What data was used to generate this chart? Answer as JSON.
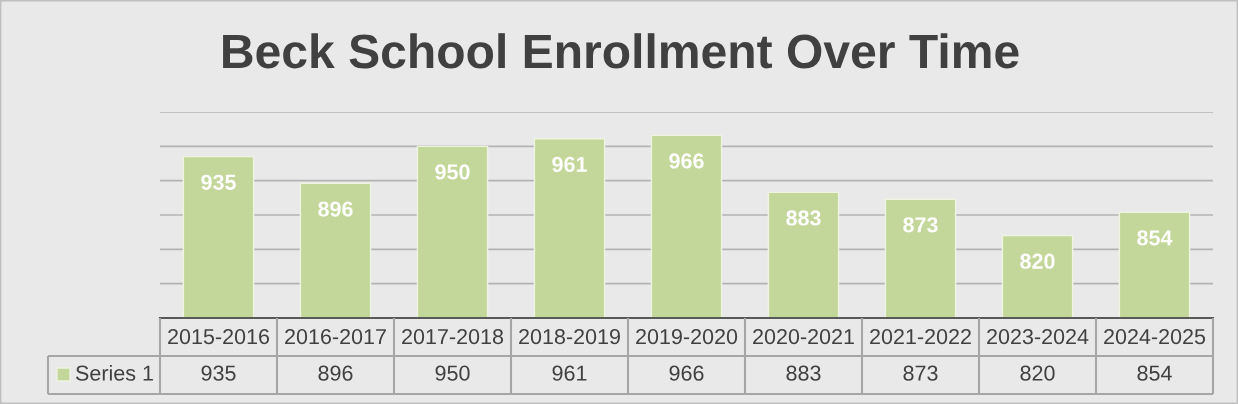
{
  "chart_data": {
    "type": "bar",
    "title": "Beck School Enrollment Over Time",
    "categories": [
      "2015-2016",
      "2016-2017",
      "2017-2018",
      "2018-2019",
      "2019-2020",
      "2020-2021",
      "2021-2022",
      "2023-2024",
      "2024-2025"
    ],
    "series": [
      {
        "name": "Series 1",
        "color": "#c4d79b",
        "values": [
          935,
          896,
          950,
          961,
          966,
          883,
          873,
          820,
          854
        ]
      }
    ],
    "ylim": [
      700,
      1000
    ],
    "yticks": [
      {
        "value": 700,
        "label": null
      },
      {
        "value": 750,
        "label": null
      },
      {
        "value": 800,
        "label": null
      },
      {
        "value": 850,
        "label": null
      },
      {
        "value": 900,
        "label": null
      },
      {
        "value": 950,
        "label": null
      },
      {
        "value": 1000,
        "label": null
      }
    ],
    "grid": "y",
    "tick_labels": "x",
    "data_labels": true,
    "annotations": [
      "935",
      "896",
      "950",
      "961",
      "966",
      "883",
      "873",
      "820",
      "854"
    ]
  }
}
